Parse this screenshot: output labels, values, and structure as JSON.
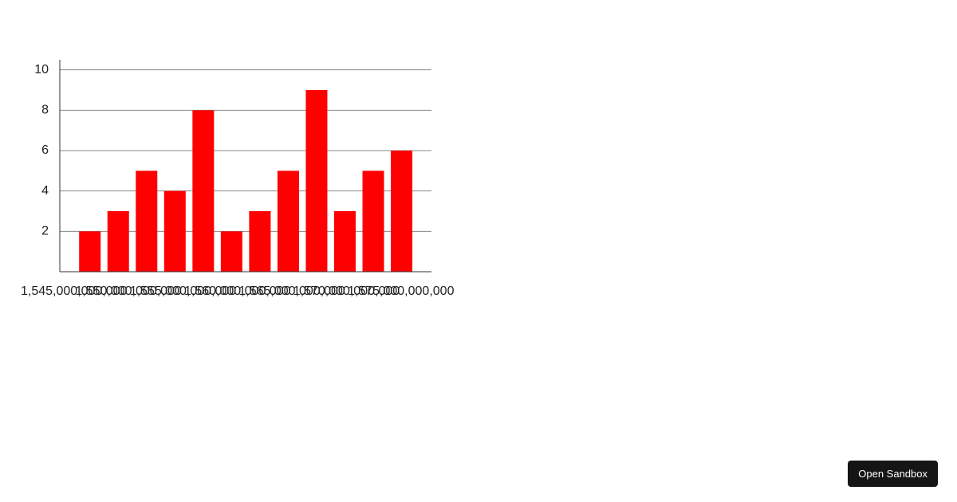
{
  "chart_data": {
    "type": "bar",
    "color": "#ff0000",
    "grid": true,
    "x": [
      1546460000000,
      1549060000000,
      1551660000000,
      1554260000000,
      1556860000000,
      1559460000000,
      1562060000000,
      1564660000000,
      1567260000000,
      1569860000000,
      1572460000000,
      1575060000000
    ],
    "values": [
      2,
      3,
      5,
      4,
      8,
      2,
      3,
      5,
      9,
      3,
      5,
      6
    ],
    "xlim": [
      1543700000000,
      1577800000000
    ],
    "xticks": [
      {
        "value": 1545000000000,
        "label": "1,545,000,000,000"
      },
      {
        "value": 1550000000000,
        "label": "1,550,000,000,000"
      },
      {
        "value": 1555000000000,
        "label": "1,555,000,000,000"
      },
      {
        "value": 1560000000000,
        "label": "1,560,000,000,000"
      },
      {
        "value": 1565000000000,
        "label": "1,565,000,000,000"
      },
      {
        "value": 1570000000000,
        "label": "1,570,000,000,000"
      },
      {
        "value": 1575000000000,
        "label": "1,575,000,000,000"
      }
    ],
    "ylim": [
      0,
      10.5
    ],
    "yticks": [
      2,
      4,
      6,
      8,
      10
    ]
  },
  "button": "Open Sandbox"
}
